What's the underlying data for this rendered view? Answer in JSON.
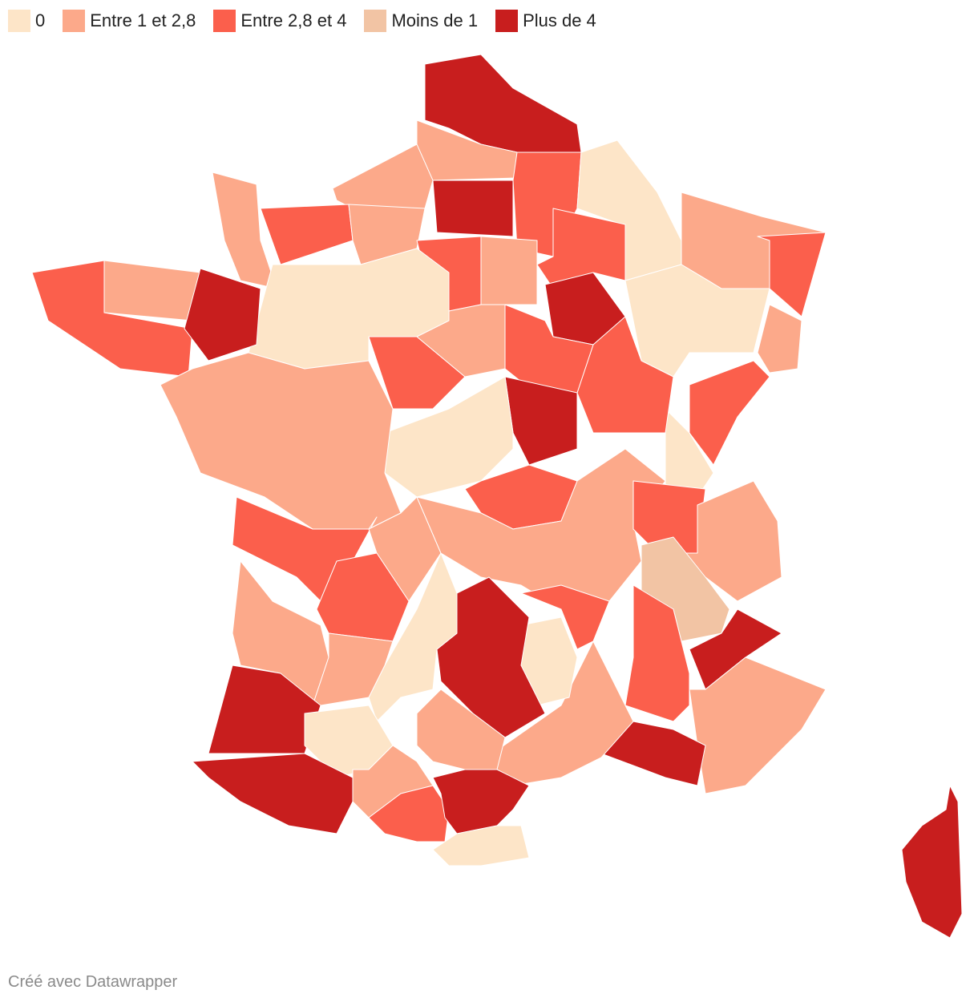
{
  "legend": [
    {
      "label": "0",
      "color": "#fde5c8"
    },
    {
      "label": "Entre 1 et 2,8",
      "color": "#fca98a"
    },
    {
      "label": "Entre 2,8 et 4",
      "color": "#fb5f4c"
    },
    {
      "label": "Moins de 1",
      "color": "#f2c4a4"
    },
    {
      "label": "Plus de 4",
      "color": "#c81e1e"
    }
  ],
  "footer": "Créé avec Datawrapper"
}
